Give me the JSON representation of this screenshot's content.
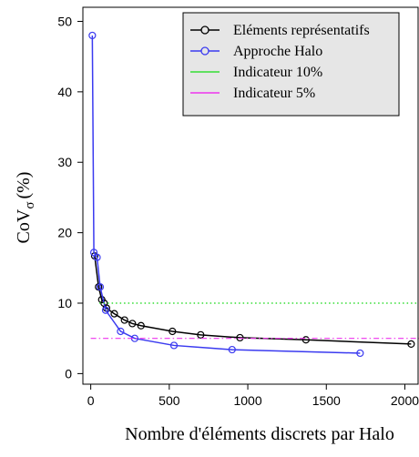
{
  "chart_data": {
    "type": "line",
    "xlabel": "Nombre d'éléments discrets par Halo",
    "ylabel": "CoV",
    "ylabel_subscript": "σ",
    "ylabel_unit": "(%)",
    "xlim": [
      -50,
      2090
    ],
    "ylim": [
      -1.5,
      52
    ],
    "x_ticks": [
      0,
      500,
      1000,
      1500,
      2000
    ],
    "y_ticks": [
      0,
      10,
      20,
      30,
      40,
      50
    ],
    "grid": false,
    "legend_position": "top-right",
    "series": [
      {
        "name": "Eléments représentatifs",
        "color": "#000000",
        "marker": "circle",
        "x": [
          25,
          50,
          70,
          85,
          100,
          150,
          215,
          265,
          320,
          520,
          700,
          950,
          1370,
          2040
        ],
        "y": [
          16.7,
          12.3,
          10.5,
          10.0,
          9.3,
          8.5,
          7.6,
          7.1,
          6.8,
          6.0,
          5.5,
          5.1,
          4.8,
          4.2
        ]
      },
      {
        "name": "Approche Halo",
        "color": "#3a3af0",
        "marker": "circle",
        "x": [
          10,
          20,
          40,
          60,
          95,
          190,
          280,
          530,
          900,
          1715
        ],
        "y": [
          48.0,
          17.2,
          16.5,
          12.3,
          9.0,
          6.0,
          5.0,
          4.0,
          3.4,
          2.9
        ]
      },
      {
        "name": "Indicateur 10%",
        "color": "#33dd33",
        "style": "dotted-hline",
        "x": [
          55,
          2090
        ],
        "y": [
          10,
          10
        ]
      },
      {
        "name": "Indicateur 5%",
        "color": "#ee33ee",
        "style": "dashdot-hline",
        "x": [
          0,
          2090
        ],
        "y": [
          5,
          5
        ]
      }
    ]
  }
}
